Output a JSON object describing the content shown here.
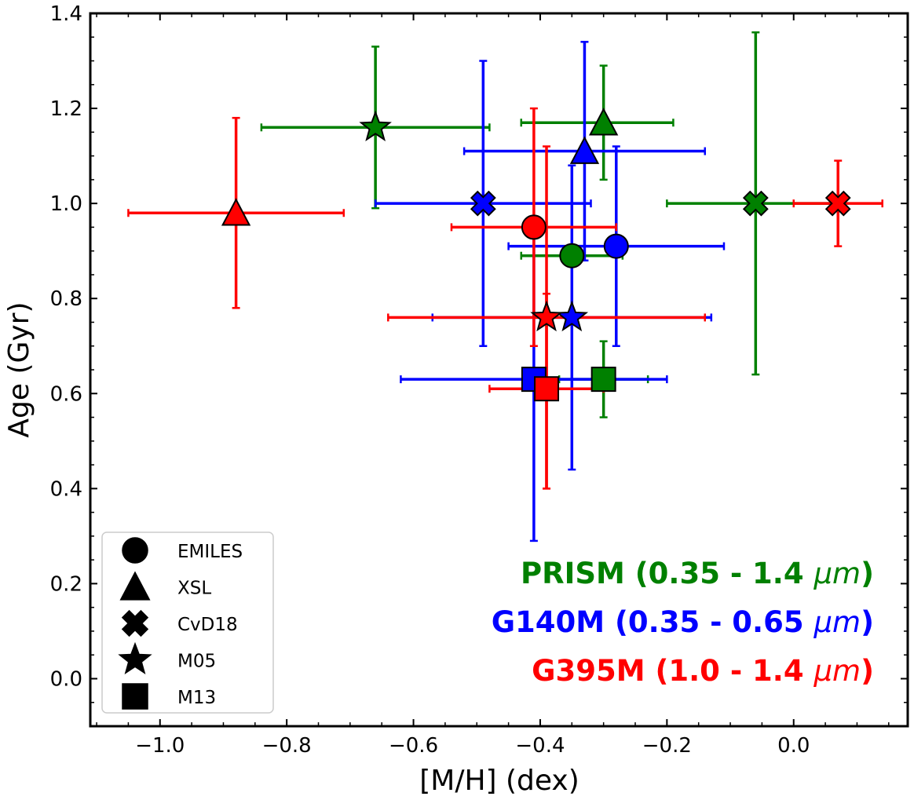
{
  "chart_data": {
    "type": "scatter",
    "xlabel": "[M/H] (dex)",
    "ylabel": "Age (Gyr)",
    "xlim": [
      -1.11,
      0.18
    ],
    "ylim": [
      -0.1,
      1.4
    ],
    "xticks": [
      -1.0,
      -0.8,
      -0.6,
      -0.4,
      -0.2,
      0.0
    ],
    "xtick_labels": [
      "−1.0",
      "−0.8",
      "−0.6",
      "−0.4",
      "−0.2",
      "0.0"
    ],
    "yticks": [
      0.0,
      0.2,
      0.4,
      0.6,
      0.8,
      1.0,
      1.2,
      1.4
    ],
    "ytick_labels": [
      "0.0",
      "0.2",
      "0.4",
      "0.6",
      "0.8",
      "1.0",
      "1.2",
      "1.4"
    ],
    "legend_position": "lower-left",
    "models": [
      {
        "name": "EMILES",
        "marker": "circle"
      },
      {
        "name": "XSL",
        "marker": "triangle"
      },
      {
        "name": "CvD18",
        "marker": "cross"
      },
      {
        "name": "M05",
        "marker": "star"
      },
      {
        "name": "M13",
        "marker": "square"
      }
    ],
    "series": [
      {
        "name": "PRISM",
        "label": "PRISM (0.35 - 1.4 ",
        "unit": "μm",
        "close": ")",
        "color": "#008000",
        "points": [
          {
            "model": "EMILES",
            "x": -0.35,
            "y": 0.89,
            "xerr": [
              0.08,
              0.08
            ],
            "yerr": [
              0.0,
              0.0
            ]
          },
          {
            "model": "XSL",
            "x": -0.3,
            "y": 1.17,
            "xerr": [
              0.13,
              0.11
            ],
            "yerr": [
              0.12,
              0.12
            ]
          },
          {
            "model": "CvD18",
            "x": -0.06,
            "y": 1.0,
            "xerr": [
              0.14,
              0.13
            ],
            "yerr": [
              0.36,
              0.36
            ]
          },
          {
            "model": "M05",
            "x": -0.66,
            "y": 1.16,
            "xerr": [
              0.18,
              0.18
            ],
            "yerr": [
              0.17,
              0.17
            ]
          },
          {
            "model": "M13",
            "x": -0.3,
            "y": 0.63,
            "xerr": [
              0.07,
              0.07
            ],
            "yerr": [
              0.08,
              0.08
            ]
          }
        ]
      },
      {
        "name": "G140M",
        "label": "G140M (0.35 - 0.65 ",
        "unit": "μm",
        "close": ")",
        "color": "#0000ff",
        "points": [
          {
            "model": "EMILES",
            "x": -0.28,
            "y": 0.91,
            "xerr": [
              0.17,
              0.17
            ],
            "yerr": [
              0.21,
              0.21
            ]
          },
          {
            "model": "XSL",
            "x": -0.33,
            "y": 1.11,
            "xerr": [
              0.19,
              0.19
            ],
            "yerr": [
              0.23,
              0.23
            ]
          },
          {
            "model": "CvD18",
            "x": -0.49,
            "y": 1.0,
            "xerr": [
              0.17,
              0.17
            ],
            "yerr": [
              0.3,
              0.3
            ]
          },
          {
            "model": "M05",
            "x": -0.35,
            "y": 0.76,
            "xerr": [
              0.22,
              0.22
            ],
            "yerr": [
              0.32,
              0.32
            ]
          },
          {
            "model": "M13",
            "x": -0.41,
            "y": 0.63,
            "xerr": [
              0.21,
              0.21
            ],
            "yerr": [
              0.34,
              0.34
            ]
          }
        ]
      },
      {
        "name": "G395M",
        "label": "G395M (1.0 - 1.4 ",
        "unit": "μm",
        "close": ")",
        "color": "#ff0000",
        "points": [
          {
            "model": "EMILES",
            "x": -0.41,
            "y": 0.95,
            "xerr": [
              0.13,
              0.13
            ],
            "yerr": [
              0.25,
              0.25
            ]
          },
          {
            "model": "XSL",
            "x": -0.88,
            "y": 0.98,
            "xerr": [
              0.17,
              0.17
            ],
            "yerr": [
              0.2,
              0.2
            ]
          },
          {
            "model": "CvD18",
            "x": 0.07,
            "y": 1.0,
            "xerr": [
              0.07,
              0.07
            ],
            "yerr": [
              0.09,
              0.09
            ]
          },
          {
            "model": "M05",
            "x": -0.39,
            "y": 0.76,
            "xerr": [
              0.25,
              0.25
            ],
            "yerr": [
              0.36,
              0.05
            ]
          },
          {
            "model": "M13",
            "x": -0.39,
            "y": 0.61,
            "xerr": [
              0.09,
              0.09
            ],
            "yerr": [
              0.21,
              0.51
            ]
          }
        ]
      }
    ]
  }
}
